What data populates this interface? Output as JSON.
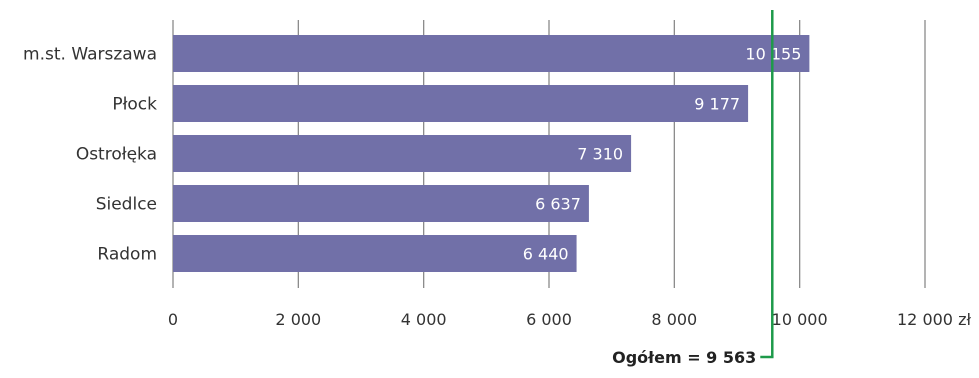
{
  "chart_data": {
    "type": "bar",
    "orientation": "horizontal",
    "categories": [
      "m.st. Warszawa",
      "Płock",
      "Ostrołęka",
      "Siedlce",
      "Radom"
    ],
    "values": [
      10155,
      9177,
      7310,
      6637,
      6440
    ],
    "value_labels": [
      "10 155",
      "9 177",
      "7 310",
      "6 637",
      "6 440"
    ],
    "xlim": [
      0,
      12000
    ],
    "x_ticks": [
      0,
      2000,
      4000,
      6000,
      8000,
      10000,
      12000
    ],
    "x_tick_labels": [
      "0",
      "2 000",
      "4 000",
      "6 000",
      "8 000",
      "10 000",
      "12 000 zł"
    ],
    "grid": true,
    "reference_line": {
      "value": 9563,
      "label": "Ogółem = 9 563"
    },
    "colors": {
      "bar": "#7170a8",
      "reference": "#1e9a4a",
      "grid": "#8a8a8a",
      "bar_text": "#ffffff"
    }
  }
}
